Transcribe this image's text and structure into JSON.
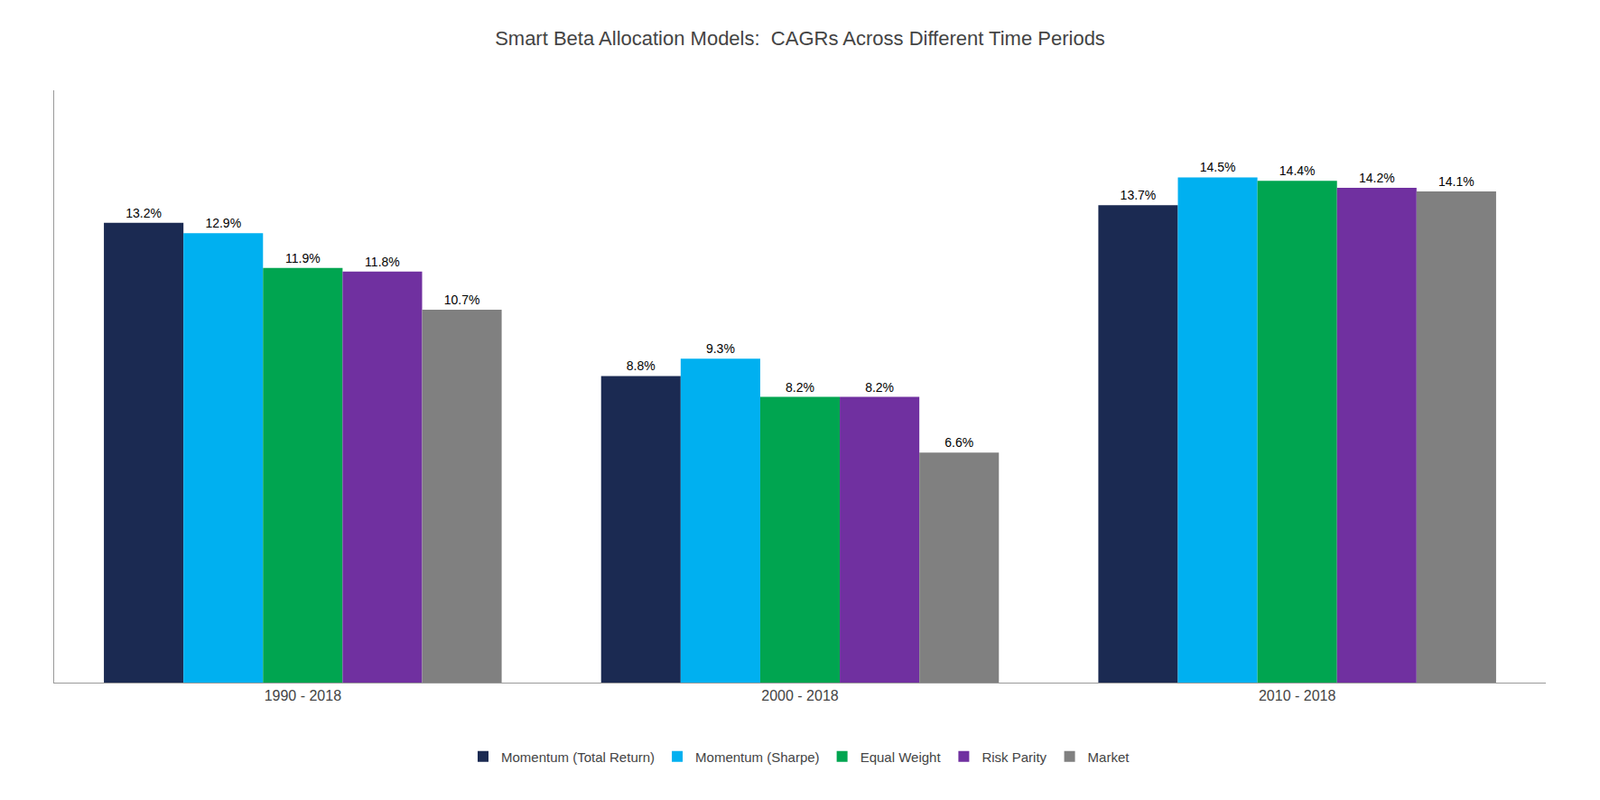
{
  "chart_data": {
    "type": "bar",
    "title": "Smart Beta Allocation Models:  CAGRs Across Different Time Periods",
    "categories": [
      "1990 - 2018",
      "2000 - 2018",
      "2010 - 2018"
    ],
    "series": [
      {
        "name": "Momentum (Total Return)",
        "color": "#1b2a52",
        "values": [
          13.2,
          8.8,
          13.7
        ],
        "value_labels": [
          "13.2%",
          "8.8%",
          "13.7%"
        ]
      },
      {
        "name": "Momentum (Sharpe)",
        "color": "#00b0f0",
        "values": [
          12.9,
          9.3,
          14.5
        ],
        "value_labels": [
          "12.9%",
          "9.3%",
          "14.5%"
        ]
      },
      {
        "name": "Equal Weight",
        "color": "#00a550",
        "values": [
          11.9,
          8.2,
          14.4
        ],
        "value_labels": [
          "11.9%",
          "8.2%",
          "14.4%"
        ]
      },
      {
        "name": "Risk Parity",
        "color": "#7030a0",
        "values": [
          11.8,
          8.2,
          14.2
        ],
        "value_labels": [
          "11.8%",
          "8.2%",
          "14.2%"
        ]
      },
      {
        "name": "Market",
        "color": "#808080",
        "values": [
          10.7,
          6.6,
          14.1
        ],
        "value_labels": [
          "10.7%",
          "6.6%",
          "14.1%"
        ]
      }
    ],
    "ylim": [
      0,
      17
    ],
    "tick_labels": "x",
    "grid": false,
    "legend": "bottom",
    "data_labels": true
  }
}
